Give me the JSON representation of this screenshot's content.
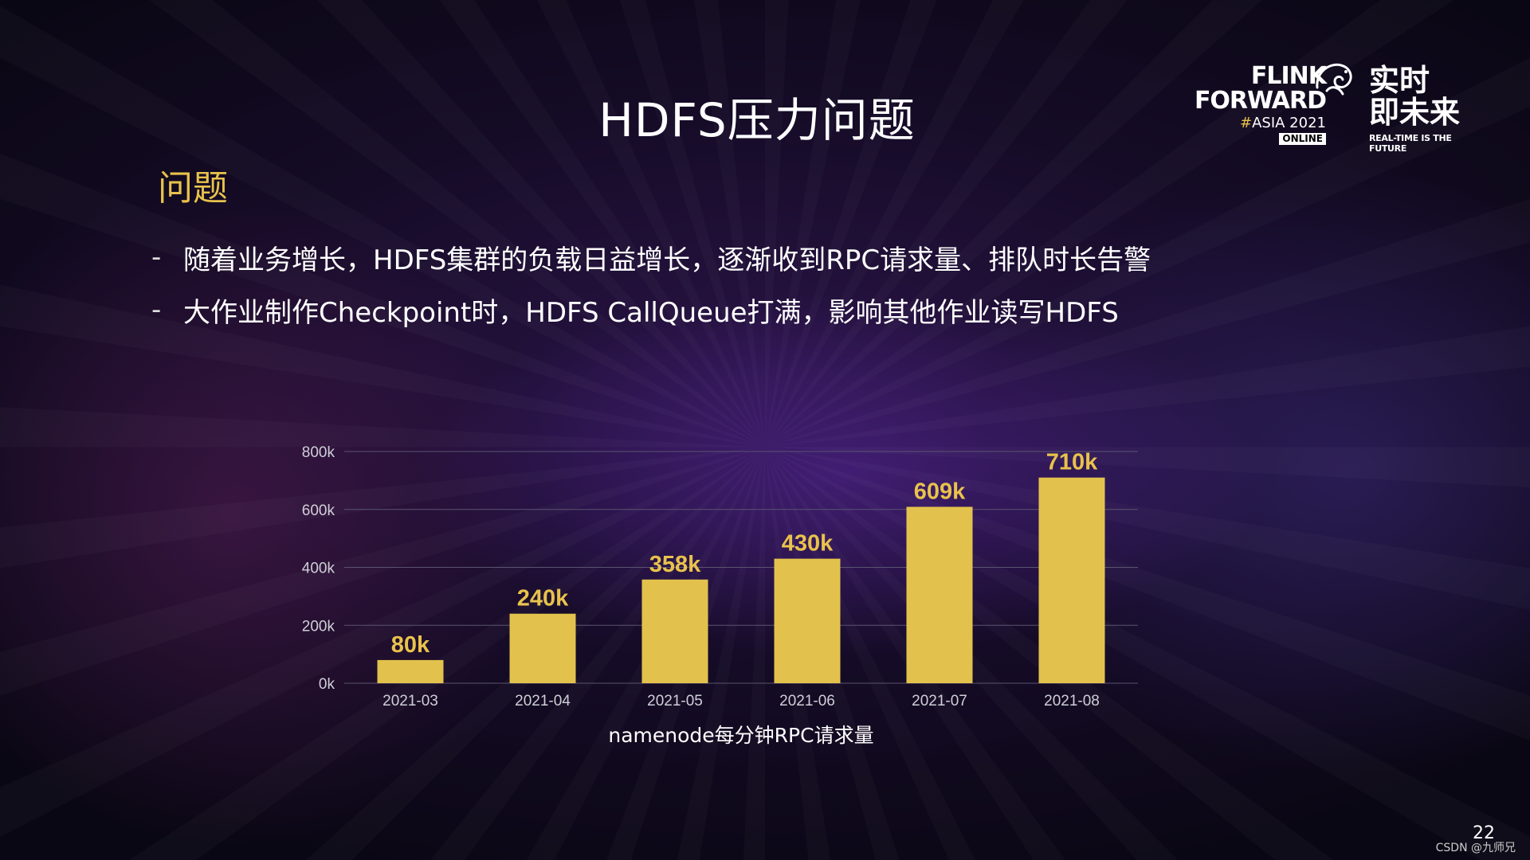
{
  "slide": {
    "title": "HDFS压力问题",
    "section_heading": "问题",
    "bullets": [
      "随着业务增长，HDFS集群的负载日益增长，逐渐收到RPC请求量、排队时长告警",
      "大作业制作Checkpoint时，HDFS CallQueue打满，影响其他作业读写HDFS"
    ],
    "bullet_marker": "-",
    "page_number": "22",
    "watermark": "CSDN @九师兄"
  },
  "logo": {
    "line1": "FLINK",
    "line2": "FORWARD",
    "hash": "#",
    "event": "ASIA 2021",
    "badge": "ONLINE",
    "cn_line1": "实时",
    "cn_line2": "即未来",
    "tagline": "REAL-TIME IS THE FUTURE",
    "icon": "squirrel-icon"
  },
  "colors": {
    "bar": "#e2c24c",
    "data_label": "#e8c24c",
    "section_heading": "#e8c24c",
    "grid": "#5a5470"
  },
  "chart_data": {
    "type": "bar",
    "categories": [
      "2021-03",
      "2021-04",
      "2021-05",
      "2021-06",
      "2021-07",
      "2021-08"
    ],
    "values": [
      80000,
      240000,
      358000,
      430000,
      609000,
      710000
    ],
    "data_labels": [
      "80k",
      "240k",
      "358k",
      "430k",
      "609k",
      "710k"
    ],
    "xlabel": "namenode每分钟RPC请求量",
    "ylabel": "",
    "ylim": [
      0,
      800000
    ],
    "y_ticks": [
      0,
      200000,
      400000,
      600000,
      800000
    ],
    "y_tick_labels": [
      "0k",
      "200k",
      "400k",
      "600k",
      "800k"
    ],
    "grid": true,
    "legend": "none"
  }
}
